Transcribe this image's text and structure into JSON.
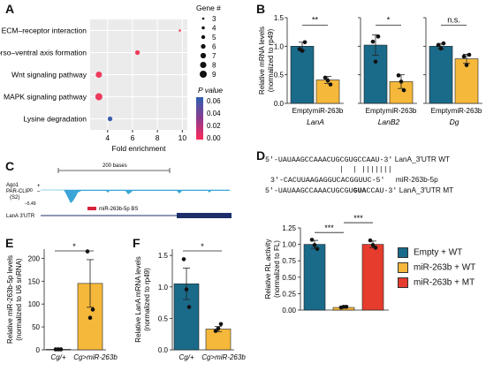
{
  "panel_labels": {
    "A": "A",
    "B": "B",
    "C": "C",
    "D": "D",
    "E": "E",
    "F": "F"
  },
  "colors": {
    "teal": "#1a6a8a",
    "yellow": "#f5b83a",
    "red": "#e53c2e",
    "pink": "#e0375c",
    "blue": "#3b5bab"
  },
  "chart_data": [
    {
      "id": "A",
      "type": "scatter",
      "categories": [
        "ECM–receptor interaction",
        "Dorso–ventral axis formation",
        "Wnt signaling pathway",
        "MAPK signaling pathway",
        "Lysine degradation"
      ],
      "x": [
        9.8,
        6.4,
        3.3,
        3.3,
        4.2
      ],
      "gene_count": [
        3,
        6,
        8,
        9,
        6
      ],
      "p_value": [
        0.006,
        0.008,
        0.005,
        0.006,
        0.06
      ],
      "xlabel": "Fold enrichment",
      "xticks": [
        "4",
        "6",
        "8",
        "10"
      ],
      "xlim": [
        2.6,
        10.4
      ],
      "grid": true,
      "size_legend": {
        "title": "Gene #",
        "values": [
          "3",
          "4",
          "5",
          "6",
          "7",
          "8",
          "9"
        ]
      },
      "color_legend": {
        "title": "P value",
        "ticks": [
          "0.06",
          "0.04",
          "0.02",
          "0.00"
        ]
      }
    },
    {
      "id": "B",
      "type": "bar",
      "ylabel_line1": "Relative mRNA levels",
      "ylabel_line2": "(normalized to rp49)",
      "ylim": [
        0,
        1.5
      ],
      "yticks": [
        "0.0",
        "0.5",
        "1.0",
        "1.5"
      ],
      "groups": [
        {
          "name": "LanA",
          "categories": [
            "Empty",
            "miR-263b"
          ],
          "values": [
            1.0,
            0.41
          ],
          "errors": [
            0.07,
            0.06
          ],
          "points": [
            [
              0.95,
              1.07,
              0.92
            ],
            [
              0.45,
              0.33,
              0.4
            ]
          ],
          "sig": "**"
        },
        {
          "name": "LanB2",
          "categories": [
            "Empty",
            "miR-263b"
          ],
          "values": [
            1.02,
            0.38
          ],
          "errors": [
            0.18,
            0.12
          ],
          "points": [
            [
              1.08,
              1.17,
              0.73
            ],
            [
              0.49,
              0.23,
              0.38
            ]
          ],
          "sig": "*"
        },
        {
          "name": "Dg",
          "categories": [
            "Empty",
            "miR-263b"
          ],
          "values": [
            1.0,
            0.78
          ],
          "errors": [
            0.05,
            0.08
          ],
          "points": [
            [
              1.02,
              1.05,
              0.96
            ],
            [
              0.82,
              0.85,
              0.67
            ]
          ],
          "sig": "n.s."
        }
      ]
    },
    {
      "id": "D",
      "type": "bar",
      "ylabel_line1": "Relative RL activity",
      "ylabel_line2": "(normalized to FL)",
      "ylim": [
        0,
        1.25
      ],
      "yticks": [
        "0.00",
        "0.25",
        "0.50",
        "0.75",
        "1.00",
        "1.25"
      ],
      "categories": [
        "Empty + WT",
        "miR-263b + WT",
        "miR-263b + MT"
      ],
      "values": [
        1.0,
        0.04,
        1.0
      ],
      "errors": [
        0.06,
        0.01,
        0.05
      ],
      "points": [
        [
          1.07,
          0.93,
          0.99
        ],
        [
          0.04,
          0.05,
          0.05
        ],
        [
          1.06,
          0.95,
          0.99
        ]
      ],
      "significance": [
        {
          "pair": [
            0,
            1
          ],
          "label": "***"
        },
        {
          "pair": [
            1,
            2
          ],
          "label": "***"
        }
      ],
      "legend": [
        "Empty + WT",
        "miR-263b + WT",
        "miR-263b + MT"
      ]
    },
    {
      "id": "E",
      "type": "bar",
      "ylabel_line1": "Relative miR-263b-5p levels",
      "ylabel_line2": "(normalized to U6 snRNA)",
      "ylim": [
        0,
        220
      ],
      "yticks": [
        "0",
        "50",
        "100",
        "150",
        "200"
      ],
      "categories": [
        "Cg/+",
        "Cg>miR-263b"
      ],
      "values": [
        1,
        145
      ],
      "errors": [
        0.5,
        52
      ],
      "points": [
        [
          1,
          1,
          1
        ],
        [
          215,
          88,
          70
        ]
      ],
      "sig": "*"
    },
    {
      "id": "F",
      "type": "bar",
      "ylabel_line1": "Relative LanA mRNA levels",
      "ylabel_line2": "(normalized to rp49)",
      "ylim": [
        0,
        1.6
      ],
      "yticks": [
        "0.0",
        "0.5",
        "1.0",
        "1.5"
      ],
      "categories": [
        "Cg/+",
        "Cg>miR-263b"
      ],
      "values": [
        1.05,
        0.33
      ],
      "errors": [
        0.25,
        0.04
      ],
      "points": [
        [
          1.44,
          0.68,
          0.96
        ],
        [
          0.3,
          0.41,
          0.34
        ]
      ],
      "sig": "*"
    }
  ],
  "panel_c": {
    "scale_label": "200 bases",
    "track_label_1": "Ago1",
    "track_label_2": "PAR-CLIP",
    "track_label_3": "(S2)",
    "plus_label": "+",
    "minus_label": "–",
    "zero_label": "0",
    "min_label": "–5.49",
    "site_label": "miR-263b-5p BS",
    "gene_label": "LanA 3'UTR"
  },
  "panel_d_seq": {
    "line1_seq": "5′-UAUAAGCCAAACUGCGUGCCAAU-3′",
    "line1_name": "LanA_3′UTR WT",
    "pairs": "|  | |||||||",
    "line2_seq": "3′-CACUUAAGAGGUCACGGUUC-5′",
    "line2_name": "miR-263b-5p",
    "line3_a": "5′-UAUAAGCCAAACUGCGU",
    "line3_b": "GUA",
    "line3_c": "CCAU-3′",
    "line3_name": "LanA_3′UTR MT"
  }
}
